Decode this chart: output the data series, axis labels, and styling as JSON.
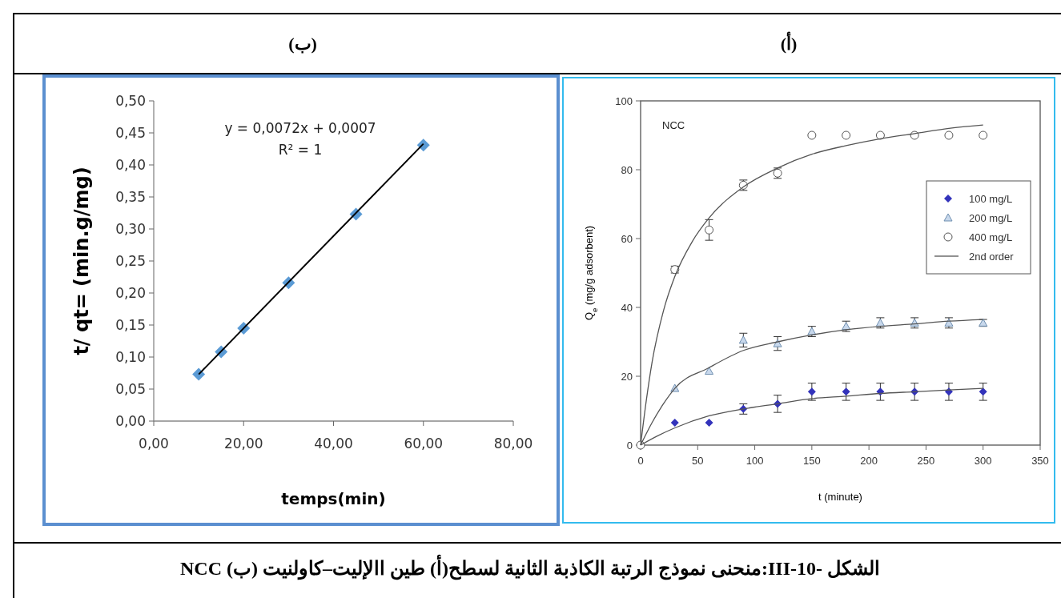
{
  "chart_data": [
    {
      "type": "scatter",
      "title": "(ب)",
      "xlabel": "temps(min)",
      "ylabel": "t/ qt= (min.g/mg)",
      "xlim": [
        0,
        80
      ],
      "ylim": [
        0,
        0.5
      ],
      "xticks": [
        {
          "value": 0,
          "label": "0,00"
        },
        {
          "value": 20,
          "label": "20,00"
        },
        {
          "value": 40,
          "label": "40,00"
        },
        {
          "value": 60,
          "label": "60,00"
        },
        {
          "value": 80,
          "label": "80,00"
        }
      ],
      "yticks": [
        {
          "value": 0,
          "label": "0,00"
        },
        {
          "value": 0.05,
          "label": "0,05"
        },
        {
          "value": 0.1,
          "label": "0,10"
        },
        {
          "value": 0.15,
          "label": "0,15"
        },
        {
          "value": 0.2,
          "label": "0,20"
        },
        {
          "value": 0.25,
          "label": "0,25"
        },
        {
          "value": 0.3,
          "label": "0,30"
        },
        {
          "value": 0.35,
          "label": "0,35"
        },
        {
          "value": 0.4,
          "label": "0,40"
        },
        {
          "value": 0.45,
          "label": "0,45"
        },
        {
          "value": 0.5,
          "label": "0,50"
        }
      ],
      "series": [
        {
          "color": "#5b9bd5",
          "marker": "diamond",
          "x": [
            10,
            15,
            20,
            30,
            45,
            60
          ],
          "values": [
            0.073,
            0.108,
            0.145,
            0.216,
            0.323,
            0.431
          ]
        },
        {
          "type": "line",
          "color": "#000000",
          "x": [
            10,
            60
          ],
          "values": [
            0.073,
            0.433
          ]
        }
      ],
      "annotations": [
        "y = 0,0072x + 0,0007",
        "R² = 1"
      ]
    },
    {
      "type": "scatter",
      "title": "(أ)",
      "xlabel": "t (minute)",
      "ylabel": "Q$_{e}$ (mg/g adsorbent)",
      "xlim": [
        0,
        350
      ],
      "ylim": [
        0,
        100
      ],
      "xticks": [
        0,
        50,
        100,
        150,
        200,
        250,
        300,
        350
      ],
      "yticks": [
        0,
        20,
        40,
        60,
        80,
        100
      ],
      "legend": "top right",
      "series": [
        {
          "name": "100 mg/L",
          "color": "#3333bb",
          "marker": "diamond",
          "x": [
            30,
            60,
            90,
            120,
            150,
            180,
            210,
            240,
            270,
            300
          ],
          "values": [
            6.5,
            6.5,
            10.5,
            12,
            15.5,
            15.5,
            15.5,
            15.5,
            15.5,
            15.5
          ],
          "errors": [
            null,
            null,
            1.5,
            2.5,
            2.5,
            2.5,
            2.5,
            2.5,
            2.5,
            2.5
          ]
        },
        {
          "name": "200 mg/L",
          "color": "#6f8fb0",
          "marker": "triangle",
          "x": [
            30,
            60,
            90,
            120,
            150,
            180,
            210,
            240,
            270,
            300
          ],
          "values": [
            16.5,
            21.5,
            30.5,
            29.5,
            33,
            34.5,
            35.5,
            35.5,
            35.5,
            35.5
          ],
          "errors": [
            null,
            null,
            2,
            2,
            1.5,
            1.5,
            1.5,
            1.5,
            1.5,
            1
          ]
        },
        {
          "name": "400 mg/L",
          "color": "#555555",
          "marker": "circle",
          "x": [
            0,
            30,
            60,
            90,
            120,
            150,
            180,
            210,
            240,
            270,
            300
          ],
          "values": [
            0,
            51,
            62.5,
            75.5,
            79,
            90,
            90,
            90,
            90,
            90,
            90
          ],
          "errors": [
            null,
            1,
            3,
            1.5,
            1.5,
            null,
            null,
            null,
            null,
            null,
            null
          ]
        },
        {
          "type": "line",
          "name": "2nd order",
          "color": "#555555",
          "x": [
            0,
            5,
            10,
            20,
            30,
            45,
            60,
            90,
            120,
            150,
            180,
            210,
            240,
            270,
            300
          ],
          "values": [
            0,
            13,
            24,
            39,
            49,
            59,
            66,
            75,
            80.5,
            84.5,
            87,
            89,
            90.5,
            92,
            93
          ]
        },
        {
          "type": "line",
          "color": "#555555",
          "x": [
            0,
            10,
            20,
            30,
            60,
            90,
            120,
            150,
            180,
            210,
            240,
            270,
            300
          ],
          "values": [
            0,
            6.5,
            12,
            16.5,
            22.5,
            27.5,
            30,
            32,
            33.5,
            34.5,
            35.2,
            36,
            36.5
          ]
        },
        {
          "type": "line",
          "color": "#555555",
          "x": [
            0,
            15,
            30,
            60,
            90,
            120,
            150,
            180,
            210,
            240,
            270,
            300
          ],
          "values": [
            0,
            2.7,
            5,
            8.5,
            10.5,
            12,
            13.5,
            14.2,
            15,
            15.5,
            16,
            16.5
          ]
        }
      ],
      "annotations": [
        "NCC",
        "الشكل -III-10:منحنى نموذج الرتبة الكاذبة الثانية لسطح(أ) طين االإليت–كاولنيت (ب) NCC"
      ]
    }
  ]
}
